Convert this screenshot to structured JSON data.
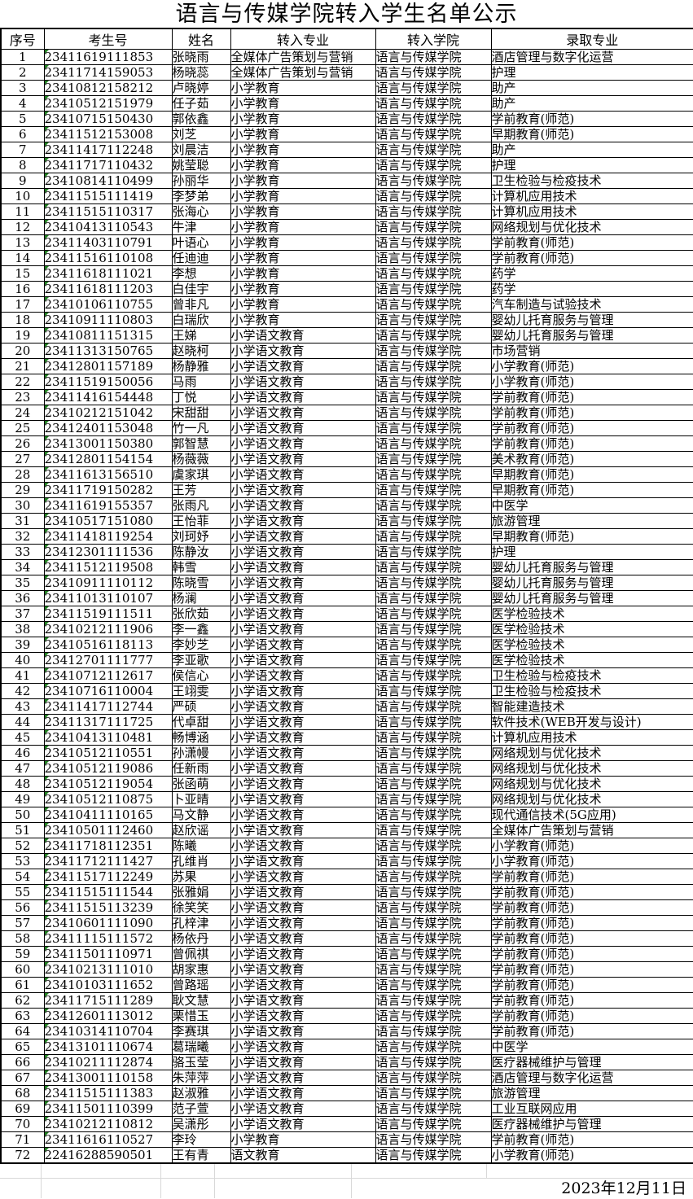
{
  "title": "语言与传媒学院转入学生名单公示",
  "publish_date": "2023年12月11日",
  "colors": {
    "table_border": "#000000",
    "sheet_gridline": "#d8d8d8",
    "cell_flag_green": "#1e7e1e"
  },
  "table": {
    "columns": [
      "序号",
      "考生号",
      "姓名",
      "转入专业",
      "转入学院",
      "录取专业"
    ],
    "rows": [
      [
        "1",
        "23411619111853",
        "张晓雨",
        "全媒体广告策划与营销",
        "语言与传媒学院",
        "酒店管理与数字化运营"
      ],
      [
        "2",
        "23411714159053",
        "杨晓蕊",
        "全媒体广告策划与营销",
        "语言与传媒学院",
        "护理"
      ],
      [
        "3",
        "23410812158212",
        "卢晓婷",
        "小学教育",
        "语言与传媒学院",
        "助产"
      ],
      [
        "4",
        "23410512151979",
        "任子茹",
        "小学教育",
        "语言与传媒学院",
        "助产"
      ],
      [
        "5",
        "23410715150430",
        "郭依鑫",
        "小学教育",
        "语言与传媒学院",
        "学前教育(师范)"
      ],
      [
        "6",
        "23411512153008",
        "刘芝",
        "小学教育",
        "语言与传媒学院",
        "早期教育(师范)"
      ],
      [
        "7",
        "23411417112248",
        "刘晨洁",
        "小学教育",
        "语言与传媒学院",
        "助产"
      ],
      [
        "8",
        "23411717110432",
        "姚莹聪",
        "小学教育",
        "语言与传媒学院",
        "护理"
      ],
      [
        "9",
        "23410814110499",
        "孙丽华",
        "小学教育",
        "语言与传媒学院",
        "卫生检验与检疫技术"
      ],
      [
        "10",
        "23411515111419",
        "李梦弟",
        "小学教育",
        "语言与传媒学院",
        "计算机应用技术"
      ],
      [
        "11",
        "23411515110317",
        "张海心",
        "小学教育",
        "语言与传媒学院",
        "计算机应用技术"
      ],
      [
        "12",
        "23410413110543",
        "牛津",
        "小学教育",
        "语言与传媒学院",
        "网络规划与优化技术"
      ],
      [
        "13",
        "23411403110791",
        "叶语心",
        "小学教育",
        "语言与传媒学院",
        "学前教育(师范)"
      ],
      [
        "14",
        "23411516110108",
        "任迪迪",
        "小学教育",
        "语言与传媒学院",
        "学前教育(师范)"
      ],
      [
        "15",
        "23411618111021",
        "李想",
        "小学教育",
        "语言与传媒学院",
        "药学"
      ],
      [
        "16",
        "23411618111203",
        "白佳宇",
        "小学教育",
        "语言与传媒学院",
        "药学"
      ],
      [
        "17",
        "23410106110755",
        "曾非凡",
        "小学教育",
        "语言与传媒学院",
        "汽车制造与试验技术"
      ],
      [
        "18",
        "23410911110803",
        "白瑞欣",
        "小学教育",
        "语言与传媒学院",
        "婴幼儿托育服务与管理"
      ],
      [
        "19",
        "23410811151315",
        "王娣",
        "小学语文教育",
        "语言与传媒学院",
        "婴幼儿托育服务与管理"
      ],
      [
        "20",
        "23411313150765",
        "赵晓柯",
        "小学语文教育",
        "语言与传媒学院",
        "市场营销"
      ],
      [
        "21",
        "23412801157189",
        "杨静雅",
        "小学语文教育",
        "语言与传媒学院",
        "小学教育(师范)"
      ],
      [
        "22",
        "23411519150056",
        "马雨",
        "小学语文教育",
        "语言与传媒学院",
        "小学教育(师范)"
      ],
      [
        "23",
        "23411416154448",
        "丁悦",
        "小学语文教育",
        "语言与传媒学院",
        "学前教育(师范)"
      ],
      [
        "24",
        "23410212151042",
        "宋甜甜",
        "小学语文教育",
        "语言与传媒学院",
        "学前教育(师范)"
      ],
      [
        "25",
        "23412401153048",
        "竹一凡",
        "小学语文教育",
        "语言与传媒学院",
        "学前教育(师范)"
      ],
      [
        "26",
        "23413001150380",
        "郭智慧",
        "小学语文教育",
        "语言与传媒学院",
        "学前教育(师范)"
      ],
      [
        "27",
        "23412801154154",
        "杨薇薇",
        "小学语文教育",
        "语言与传媒学院",
        "美术教育(师范)"
      ],
      [
        "28",
        "23411613156510",
        "虞家琪",
        "小学语文教育",
        "语言与传媒学院",
        "早期教育(师范)"
      ],
      [
        "29",
        "23411719150282",
        "王芳",
        "小学语文教育",
        "语言与传媒学院",
        "早期教育(师范)"
      ],
      [
        "30",
        "23411619155357",
        "张雨凡",
        "小学语文教育",
        "语言与传媒学院",
        "中医学"
      ],
      [
        "31",
        "23410517151080",
        "王怡菲",
        "小学语文教育",
        "语言与传媒学院",
        "旅游管理"
      ],
      [
        "32",
        "23411418119254",
        "刘珂妤",
        "小学语文教育",
        "语言与传媒学院",
        "早期教育(师范)"
      ],
      [
        "33",
        "23412301111536",
        "陈静汝",
        "小学语文教育",
        "语言与传媒学院",
        "护理"
      ],
      [
        "34",
        "23411512119508",
        "韩雪",
        "小学语文教育",
        "语言与传媒学院",
        "婴幼儿托育服务与管理"
      ],
      [
        "35",
        "23410911110112",
        "陈晓雪",
        "小学语文教育",
        "语言与传媒学院",
        "婴幼儿托育服务与管理"
      ],
      [
        "36",
        "23411013110107",
        "杨澜",
        "小学语文教育",
        "语言与传媒学院",
        "婴幼儿托育服务与管理"
      ],
      [
        "37",
        "23411519111511",
        "张欣茹",
        "小学语文教育",
        "语言与传媒学院",
        "医学检验技术"
      ],
      [
        "38",
        "23410212111906",
        "李一鑫",
        "小学语文教育",
        "语言与传媒学院",
        "医学检验技术"
      ],
      [
        "39",
        "23410516118113",
        "李妙芝",
        "小学语文教育",
        "语言与传媒学院",
        "医学检验技术"
      ],
      [
        "40",
        "23412701111777",
        "李亚歌",
        "小学语文教育",
        "语言与传媒学院",
        "医学检验技术"
      ],
      [
        "41",
        "23410712112617",
        "侯信心",
        "小学语文教育",
        "语言与传媒学院",
        "卫生检验与检疫技术"
      ],
      [
        "42",
        "23410716110004",
        "王翊雯",
        "小学语文教育",
        "语言与传媒学院",
        "卫生检验与检疫技术"
      ],
      [
        "43",
        "23411417112744",
        "严硕",
        "小学语文教育",
        "语言与传媒学院",
        "智能建造技术"
      ],
      [
        "44",
        "23411317111725",
        "代卓甜",
        "小学语文教育",
        "语言与传媒学院",
        "软件技术(WEB开发与设计)"
      ],
      [
        "45",
        "23410413110481",
        "畅博涵",
        "小学语文教育",
        "语言与传媒学院",
        "计算机应用技术"
      ],
      [
        "46",
        "23410512110551",
        "孙潇幔",
        "小学语文教育",
        "语言与传媒学院",
        "网络规划与优化技术"
      ],
      [
        "47",
        "23410512119086",
        "任新雨",
        "小学语文教育",
        "语言与传媒学院",
        "网络规划与优化技术"
      ],
      [
        "48",
        "23410512119054",
        "张函萌",
        "小学语文教育",
        "语言与传媒学院",
        "网络规划与优化技术"
      ],
      [
        "49",
        "23410512110875",
        "卜亚晴",
        "小学语文教育",
        "语言与传媒学院",
        "网络规划与优化技术"
      ],
      [
        "50",
        "23410411110165",
        "马文静",
        "小学语文教育",
        "语言与传媒学院",
        "现代通信技术(5G应用)"
      ],
      [
        "51",
        "23410501112460",
        "赵欣谣",
        "小学语文教育",
        "语言与传媒学院",
        "全媒体广告策划与营销"
      ],
      [
        "52",
        "23411718112351",
        "陈曦",
        "小学语文教育",
        "语言与传媒学院",
        "小学教育(师范)"
      ],
      [
        "53",
        "23411712111427",
        "孔维肖",
        "小学语文教育",
        "语言与传媒学院",
        "小学教育(师范)"
      ],
      [
        "54",
        "23411517112249",
        "苏果",
        "小学语文教育",
        "语言与传媒学院",
        "学前教育(师范)"
      ],
      [
        "55",
        "23411515111544",
        "张雅娟",
        "小学语文教育",
        "语言与传媒学院",
        "学前教育(师范)"
      ],
      [
        "56",
        "23411515113239",
        "徐笑笑",
        "小学语文教育",
        "语言与传媒学院",
        "学前教育(师范)"
      ],
      [
        "57",
        "23410601111090",
        "孔梓津",
        "小学语文教育",
        "语言与传媒学院",
        "学前教育(师范)"
      ],
      [
        "58",
        "23411115111572",
        "杨依丹",
        "小学语文教育",
        "语言与传媒学院",
        "学前教育(师范)"
      ],
      [
        "59",
        "23411501110971",
        "曾佩祺",
        "小学语文教育",
        "语言与传媒学院",
        "学前教育(师范)"
      ],
      [
        "60",
        "23410213111010",
        "胡家惠",
        "小学语文教育",
        "语言与传媒学院",
        "学前教育(师范)"
      ],
      [
        "61",
        "23410103111652",
        "曾路瑶",
        "小学语文教育",
        "语言与传媒学院",
        "学前教育(师范)"
      ],
      [
        "62",
        "23411715111289",
        "耿文慧",
        "小学语文教育",
        "语言与传媒学院",
        "学前教育(师范)"
      ],
      [
        "63",
        "23412601113012",
        "栗惜玉",
        "小学语文教育",
        "语言与传媒学院",
        "学前教育(师范)"
      ],
      [
        "64",
        "23410314110704",
        "李赛琪",
        "小学语文教育",
        "语言与传媒学院",
        "学前教育(师范)"
      ],
      [
        "65",
        "23413101110674",
        "葛瑞曦",
        "小学语文教育",
        "语言与传媒学院",
        "中医学"
      ],
      [
        "66",
        "23410211112874",
        "骆玉莹",
        "小学语文教育",
        "语言与传媒学院",
        "医疗器械维护与管理"
      ],
      [
        "67",
        "23413001110158",
        "朱萍萍",
        "小学语文教育",
        "语言与传媒学院",
        "酒店管理与数字化运营"
      ],
      [
        "68",
        "23411515111383",
        "赵淑雅",
        "小学语文教育",
        "语言与传媒学院",
        "旅游管理"
      ],
      [
        "69",
        "23411501110399",
        "范子萱",
        "小学语文教育",
        "语言与传媒学院",
        "工业互联网应用"
      ],
      [
        "70",
        "23410212110812",
        "吴潇彤",
        "小学语文教育",
        "语言与传媒学院",
        "医疗器械维护与管理"
      ],
      [
        "71",
        "23411616110527",
        "李玲",
        "小学教育",
        "语言与传媒学院",
        "学前教育(师范)"
      ],
      [
        "72",
        "22416288590501",
        "王有青",
        "语文教育",
        "语言与传媒学院",
        "小学教育(师范)"
      ]
    ]
  }
}
